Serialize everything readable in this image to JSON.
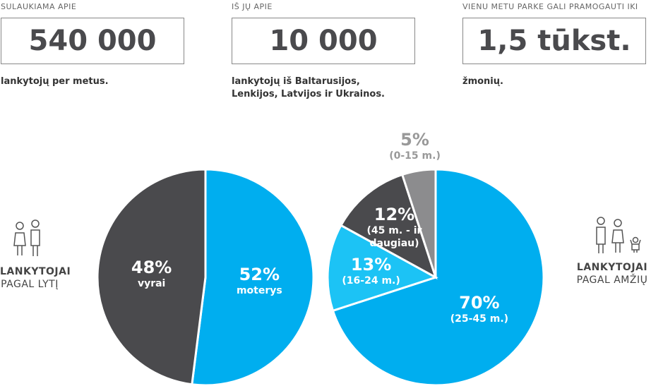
{
  "stats": [
    {
      "label": "SULAUKIAMA APIE",
      "value": "540 000",
      "caption": "lankytojų per metus."
    },
    {
      "label": "IŠ JŲ APIE",
      "value": "10 000",
      "caption": "lankytojų iš Baltarusijos, Lenkijos, Latvijos ir Ukrainos."
    },
    {
      "label": "VIENU METU PARKE GALI PRAMOGAUTI IKI",
      "value": "1,5 tūkst.",
      "caption": "žmonių."
    }
  ],
  "chart_data": [
    {
      "type": "pie",
      "title": "LANKYTOJAI",
      "subtitle": "PAGAL LYTĮ",
      "categories": [
        "moterys",
        "vyrai"
      ],
      "values": [
        52,
        48
      ],
      "value_labels": [
        "52%",
        "48%"
      ],
      "colors": [
        "#00aeef",
        "#4a4a4d"
      ]
    },
    {
      "type": "pie",
      "title": "LANKYTOJAI",
      "subtitle": "PAGAL AMŽIŲ",
      "categories": [
        "(25-45 m.)",
        "(16-24 m.)",
        "(45 m. - ir daugiau)",
        "(0-15 m.)"
      ],
      "values": [
        70,
        13,
        12,
        5
      ],
      "value_labels": [
        "70%",
        "13%",
        "12%",
        "5%"
      ],
      "colors": [
        "#00aeef",
        "#1cc3f5",
        "#4a4a4d",
        "#8c8c8e"
      ]
    }
  ]
}
